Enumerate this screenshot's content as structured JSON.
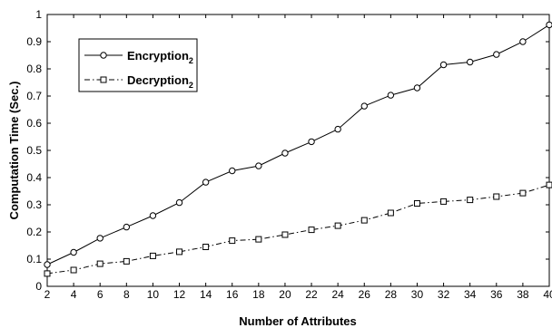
{
  "chart_data": {
    "type": "line",
    "xlabel": "Number of Attributes",
    "ylabel": "Computation Time (Sec.)",
    "xlim": [
      2,
      40
    ],
    "ylim": [
      0,
      1
    ],
    "x_ticks": [
      2,
      4,
      6,
      8,
      10,
      12,
      14,
      16,
      18,
      20,
      22,
      24,
      26,
      28,
      30,
      32,
      34,
      36,
      38,
      40
    ],
    "y_ticks": [
      0,
      0.1,
      0.2,
      0.3,
      0.4,
      0.5,
      0.6,
      0.7,
      0.8,
      0.9,
      1
    ],
    "y_tick_labels": [
      "0",
      "0.1",
      "0.2",
      "0.3",
      "0.4",
      "0.5",
      "0.6",
      "0.7",
      "0.8",
      "0.9",
      "1"
    ],
    "grid": false,
    "legend_position": "top-left",
    "x": [
      2,
      4,
      6,
      8,
      10,
      12,
      14,
      16,
      18,
      20,
      22,
      24,
      26,
      28,
      30,
      32,
      34,
      36,
      38,
      40
    ],
    "series": [
      {
        "name": "Encryption",
        "name_sub": "2",
        "marker": "circle",
        "line_style": "solid",
        "values": [
          0.08,
          0.125,
          0.177,
          0.218,
          0.26,
          0.308,
          0.383,
          0.425,
          0.443,
          0.49,
          0.532,
          0.578,
          0.663,
          0.703,
          0.73,
          0.815,
          0.825,
          0.853,
          0.9,
          0.962
        ]
      },
      {
        "name": "Decryption",
        "name_sub": "2",
        "marker": "square",
        "line_style": "dashdot",
        "values": [
          0.047,
          0.06,
          0.083,
          0.092,
          0.112,
          0.127,
          0.145,
          0.168,
          0.173,
          0.19,
          0.208,
          0.223,
          0.243,
          0.27,
          0.305,
          0.312,
          0.318,
          0.33,
          0.343,
          0.373
        ]
      }
    ]
  }
}
